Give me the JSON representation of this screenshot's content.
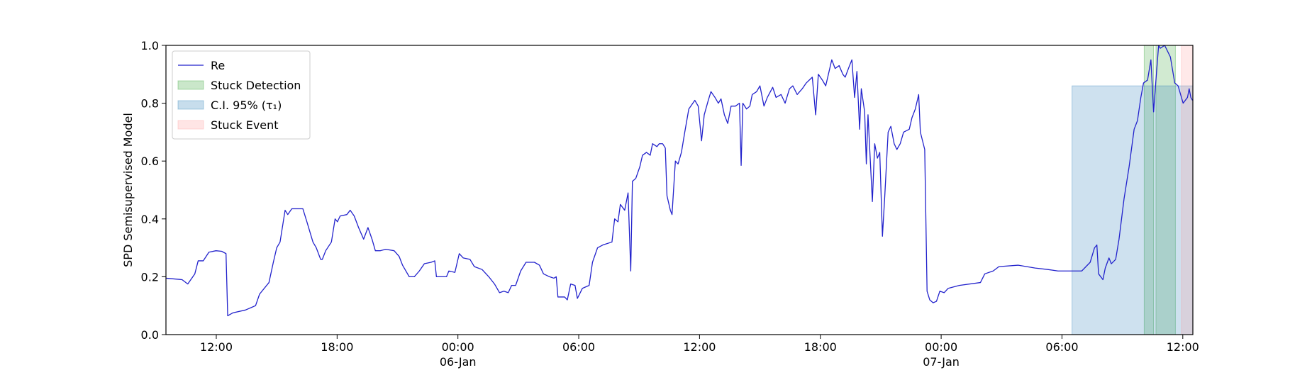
{
  "chart_data": {
    "type": "line",
    "y_label": "SPD Semisupervised Model",
    "xlim": [
      "1900-01-05T09:30",
      "1900-01-07T12:30"
    ],
    "xticks": [
      {
        "value": "1900-01-05T12:00",
        "label": "12:00"
      },
      {
        "value": "1900-01-05T18:00",
        "label": "18:00"
      },
      {
        "value": "1900-01-06T00:00",
        "label": "00:00\n06-Jan\n1900"
      },
      {
        "value": "1900-01-06T06:00",
        "label": "06:00"
      },
      {
        "value": "1900-01-06T12:00",
        "label": "12:00"
      },
      {
        "value": "1900-01-06T18:00",
        "label": "18:00"
      },
      {
        "value": "1900-01-07T00:00",
        "label": "00:00\n07-Jan"
      },
      {
        "value": "1900-01-07T06:00",
        "label": "06:00"
      },
      {
        "value": "1900-01-07T12:00",
        "label": "12:00"
      }
    ],
    "ylim": [
      0,
      1
    ],
    "yticks": [
      {
        "value": 0,
        "label": "0.0"
      },
      0.2,
      0.4,
      0.6,
      0.8,
      {
        "value": 1,
        "label": "1.0"
      }
    ],
    "legend": "upper left",
    "series": [
      {
        "name": "Re",
        "color": "#2222cc",
        "x": [
          "1900-01-05T09:30",
          "1900-01-05T10:18",
          "1900-01-05T10:35",
          "1900-01-05T10:56",
          "1900-01-05T11:06",
          "1900-01-05T11:21",
          "1900-01-05T11:38",
          "1900-01-05T11:59",
          "1900-01-05T12:16",
          "1900-01-05T12:29",
          "1900-01-05T12:34",
          "1900-01-05T12:49",
          "1900-01-05T13:27",
          "1900-01-05T13:47",
          "1900-01-05T13:57",
          "1900-01-05T14:09",
          "1900-01-05T14:37",
          "1900-01-05T14:50",
          "1900-01-05T15:00",
          "1900-01-05T15:10",
          "1900-01-05T15:25",
          "1900-01-05T15:33",
          "1900-01-05T15:45",
          "1900-01-05T16:18",
          "1900-01-05T16:30",
          "1900-01-05T16:48",
          "1900-01-05T16:58",
          "1900-01-05T17:11",
          "1900-01-05T17:16",
          "1900-01-05T17:26",
          "1900-01-05T17:43",
          "1900-01-05T17:54",
          "1900-01-05T18:01",
          "1900-01-05T18:09",
          "1900-01-05T18:29",
          "1900-01-05T18:39",
          "1900-01-05T18:51",
          "1900-01-05T19:04",
          "1900-01-05T19:19",
          "1900-01-05T19:32",
          "1900-01-05T19:44",
          "1900-01-05T19:54",
          "1900-01-05T20:09",
          "1900-01-05T20:25",
          "1900-01-05T20:50",
          "1900-01-05T21:05",
          "1900-01-05T21:15",
          "1900-01-05T21:35",
          "1900-01-05T21:50",
          "1900-01-05T22:05",
          "1900-01-05T22:20",
          "1900-01-05T22:40",
          "1900-01-05T22:51",
          "1900-01-05T22:56",
          "1900-01-05T23:26",
          "1900-01-05T23:33",
          "1900-01-05T23:51",
          "1900-01-06T00:04",
          "1900-01-06T00:16",
          "1900-01-06T00:36",
          "1900-01-06T00:49",
          "1900-01-06T01:12",
          "1900-01-06T01:32",
          "1900-01-06T01:49",
          "1900-01-06T02:04",
          "1900-01-06T02:17",
          "1900-01-06T02:30",
          "1900-01-06T02:40",
          "1900-01-06T02:52",
          "1900-01-06T03:07",
          "1900-01-06T03:23",
          "1900-01-06T03:48",
          "1900-01-06T04:03",
          "1900-01-06T04:15",
          "1900-01-06T04:33",
          "1900-01-06T04:46",
          "1900-01-06T04:53",
          "1900-01-06T04:58",
          "1900-01-06T05:18",
          "1900-01-06T05:26",
          "1900-01-06T05:36",
          "1900-01-06T05:49",
          "1900-01-06T05:56",
          "1900-01-06T06:11",
          "1900-01-06T06:31",
          "1900-01-06T06:41",
          "1900-01-06T06:56",
          "1900-01-06T07:12",
          "1900-01-06T07:39",
          "1900-01-06T07:47",
          "1900-01-06T07:57",
          "1900-01-06T08:04",
          "1900-01-06T08:17",
          "1900-01-06T08:27",
          "1900-01-06T08:35",
          "1900-01-06T08:40",
          "1900-01-06T08:50",
          "1900-01-06T09:02",
          "1900-01-06T09:10",
          "1900-01-06T09:22",
          "1900-01-06T09:33",
          "1900-01-06T09:40",
          "1900-01-06T09:53",
          "1900-01-06T10:00",
          "1900-01-06T10:10",
          "1900-01-06T10:18",
          "1900-01-06T10:23",
          "1900-01-06T10:33",
          "1900-01-06T10:38",
          "1900-01-06T10:48",
          "1900-01-06T10:56",
          "1900-01-06T11:06",
          "1900-01-06T11:16",
          "1900-01-06T11:28",
          "1900-01-06T11:46",
          "1900-01-06T11:56",
          "1900-01-06T12:06",
          "1900-01-06T12:14",
          "1900-01-06T12:26",
          "1900-01-06T12:34",
          "1900-01-06T12:46",
          "1900-01-06T12:56",
          "1900-01-06T13:04",
          "1900-01-06T13:14",
          "1900-01-06T13:24",
          "1900-01-06T13:34",
          "1900-01-06T13:47",
          "1900-01-06T13:59",
          "1900-01-06T14:04",
          "1900-01-06T14:09",
          "1900-01-06T14:20",
          "1900-01-06T14:30",
          "1900-01-06T14:37",
          "1900-01-06T14:50",
          "1900-01-06T15:00",
          "1900-01-06T15:12",
          "1900-01-06T15:22",
          "1900-01-06T15:38",
          "1900-01-06T15:48",
          "1900-01-06T16:03",
          "1900-01-06T16:15",
          "1900-01-06T16:28",
          "1900-01-06T16:38",
          "1900-01-06T16:51",
          "1900-01-06T17:06",
          "1900-01-06T17:18",
          "1900-01-06T17:36",
          "1900-01-06T17:46",
          "1900-01-06T17:54",
          "1900-01-06T18:06",
          "1900-01-06T18:16",
          "1900-01-06T18:34",
          "1900-01-06T18:44",
          "1900-01-06T18:56",
          "1900-01-06T19:07",
          "1900-01-06T19:14",
          "1900-01-06T19:27",
          "1900-01-06T19:34",
          "1900-01-06T19:42",
          "1900-01-06T19:49",
          "1900-01-06T19:57",
          "1900-01-06T20:02",
          "1900-01-06T20:12",
          "1900-01-06T20:17",
          "1900-01-06T20:22",
          "1900-01-06T20:35",
          "1900-01-06T20:42",
          "1900-01-06T20:50",
          "1900-01-06T20:57",
          "1900-01-06T21:05",
          "1900-01-06T21:12",
          "1900-01-06T21:22",
          "1900-01-06T21:30",
          "1900-01-06T21:40",
          "1900-01-06T21:48",
          "1900-01-06T21:58",
          "1900-01-06T22:08",
          "1900-01-06T22:25",
          "1900-01-06T22:33",
          "1900-01-06T22:43",
          "1900-01-06T22:53",
          "1900-01-06T22:58",
          "1900-01-06T23:11",
          "1900-01-06T23:18",
          "1900-01-06T23:26",
          "1900-01-06T23:36",
          "1900-01-06T23:46",
          "1900-01-06T23:56",
          "1900-01-07T00:09",
          "1900-01-07T00:21",
          "1900-01-07T00:54",
          "1900-01-07T01:57",
          "1900-01-07T02:10",
          "1900-01-07T02:35",
          "1900-01-07T02:52",
          "1900-01-07T03:50",
          "1900-01-07T04:15",
          "1900-01-07T04:40",
          "1900-01-07T05:18",
          "1900-01-07T05:48",
          "1900-01-07T06:59",
          "1900-01-07T07:24",
          "1900-01-07T07:37",
          "1900-01-07T07:44",
          "1900-01-07T07:49",
          "1900-01-07T08:02",
          "1900-01-07T08:09",
          "1900-01-07T08:20",
          "1900-01-07T08:27",
          "1900-01-07T08:40",
          "1900-01-07T08:50",
          "1900-01-07T09:05",
          "1900-01-07T09:20",
          "1900-01-07T09:35",
          "1900-01-07T09:45",
          "1900-01-07T09:55",
          "1900-01-07T10:03",
          "1900-01-07T10:15",
          "1900-01-07T10:25",
          "1900-01-07T10:33",
          "1900-01-07T10:40",
          "1900-01-07T10:48",
          "1900-01-07T10:53",
          "1900-01-07T11:06",
          "1900-01-07T11:23",
          "1900-01-07T11:36",
          "1900-01-07T11:46",
          "1900-01-07T12:01",
          "1900-01-07T12:14",
          "1900-01-07T12:19",
          "1900-01-07T12:24",
          "1900-01-07T12:29"
        ],
        "values": [
          0.195,
          0.19,
          0.175,
          0.21,
          0.255,
          0.255,
          0.285,
          0.29,
          0.288,
          0.28,
          0.065,
          0.075,
          0.085,
          0.095,
          0.1,
          0.14,
          0.18,
          0.25,
          0.3,
          0.32,
          0.43,
          0.415,
          0.435,
          0.435,
          0.39,
          0.32,
          0.3,
          0.26,
          0.26,
          0.29,
          0.32,
          0.4,
          0.39,
          0.41,
          0.415,
          0.43,
          0.41,
          0.37,
          0.33,
          0.37,
          0.33,
          0.29,
          0.29,
          0.295,
          0.29,
          0.27,
          0.24,
          0.2,
          0.2,
          0.22,
          0.245,
          0.25,
          0.255,
          0.2,
          0.2,
          0.22,
          0.215,
          0.28,
          0.265,
          0.26,
          0.235,
          0.225,
          0.2,
          0.175,
          0.145,
          0.15,
          0.145,
          0.17,
          0.17,
          0.22,
          0.25,
          0.25,
          0.24,
          0.21,
          0.2,
          0.195,
          0.2,
          0.13,
          0.13,
          0.12,
          0.175,
          0.17,
          0.125,
          0.16,
          0.17,
          0.25,
          0.3,
          0.31,
          0.32,
          0.4,
          0.39,
          0.45,
          0.43,
          0.49,
          0.22,
          0.53,
          0.54,
          0.58,
          0.62,
          0.63,
          0.62,
          0.66,
          0.65,
          0.66,
          0.66,
          0.645,
          0.48,
          0.43,
          0.415,
          0.6,
          0.59,
          0.63,
          0.7,
          0.78,
          0.81,
          0.79,
          0.67,
          0.76,
          0.81,
          0.84,
          0.82,
          0.8,
          0.815,
          0.76,
          0.73,
          0.79,
          0.79,
          0.8,
          0.585,
          0.8,
          0.78,
          0.79,
          0.83,
          0.84,
          0.86,
          0.79,
          0.82,
          0.855,
          0.82,
          0.83,
          0.8,
          0.85,
          0.86,
          0.83,
          0.85,
          0.87,
          0.89,
          0.76,
          0.9,
          0.88,
          0.86,
          0.95,
          0.92,
          0.93,
          0.9,
          0.89,
          0.93,
          0.95,
          0.82,
          0.91,
          0.71,
          0.85,
          0.77,
          0.59,
          0.76,
          0.46,
          0.66,
          0.61,
          0.63,
          0.34,
          0.48,
          0.7,
          0.72,
          0.66,
          0.64,
          0.66,
          0.7,
          0.71,
          0.75,
          0.78,
          0.83,
          0.7,
          0.64,
          0.15,
          0.12,
          0.11,
          0.115,
          0.15,
          0.145,
          0.16,
          0.17,
          0.18,
          0.21,
          0.22,
          0.235,
          0.24,
          0.235,
          0.23,
          0.225,
          0.22,
          0.22,
          0.25,
          0.3,
          0.31,
          0.21,
          0.19,
          0.23,
          0.265,
          0.245,
          0.26,
          0.33,
          0.47,
          0.58,
          0.71,
          0.74,
          0.82,
          0.87,
          0.88,
          0.95,
          0.77,
          0.88,
          1.0,
          0.99,
          1.0,
          0.96,
          0.87,
          0.86,
          0.8,
          0.82,
          0.85,
          0.82,
          0.81
        ]
      }
    ],
    "spans": [
      {
        "name": "Stuck Detection",
        "color": "#2ca02c",
        "intervals": [
          [
            "1900-01-07T10:05",
            "1900-01-07T10:33"
          ],
          [
            "1900-01-07T10:40",
            "1900-01-07T11:38"
          ]
        ]
      },
      {
        "name": "C.I. 95% (τ₁)",
        "color": "#1f77b4",
        "intervals": [
          [
            "1900-01-07T06:30",
            "1900-01-07T12:30"
          ]
        ],
        "ymax": 0.86
      },
      {
        "name": "Stuck Event",
        "color": "#ff9999",
        "intervals": [
          [
            "1900-01-07T11:56",
            "1900-01-07T12:30"
          ]
        ]
      }
    ]
  }
}
